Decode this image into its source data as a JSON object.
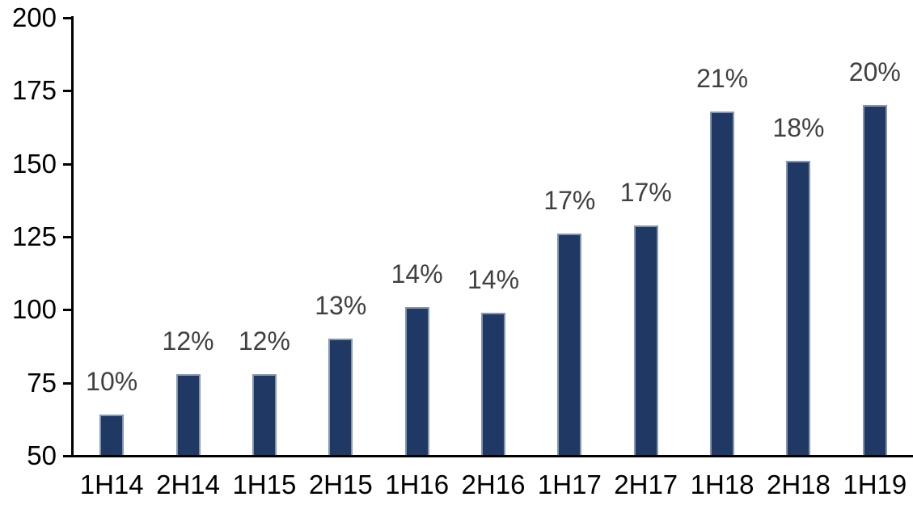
{
  "chart_data": {
    "type": "bar",
    "categories": [
      "1H14",
      "2H14",
      "1H15",
      "2H15",
      "1H16",
      "2H16",
      "1H17",
      "2H17",
      "1H18",
      "2H18",
      "1H19"
    ],
    "values": [
      64,
      78,
      78,
      90,
      101,
      99,
      126,
      129,
      168,
      151,
      170
    ],
    "data_labels": [
      "10%",
      "12%",
      "12%",
      "13%",
      "14%",
      "14%",
      "17%",
      "17%",
      "21%",
      "18%",
      "20%"
    ],
    "title": "",
    "xlabel": "",
    "ylabel": "",
    "ylim": [
      50,
      200
    ],
    "yticks": [
      200,
      175,
      150,
      125,
      100,
      75,
      50
    ],
    "grid": false,
    "legend": false,
    "colors": {
      "bar_fill": "#1F3864",
      "bar_border": "#8496B0",
      "axis_line": "#000000",
      "axis_tick_label": "#000000",
      "data_label": "#404040",
      "background": "#FFFFFF"
    }
  }
}
